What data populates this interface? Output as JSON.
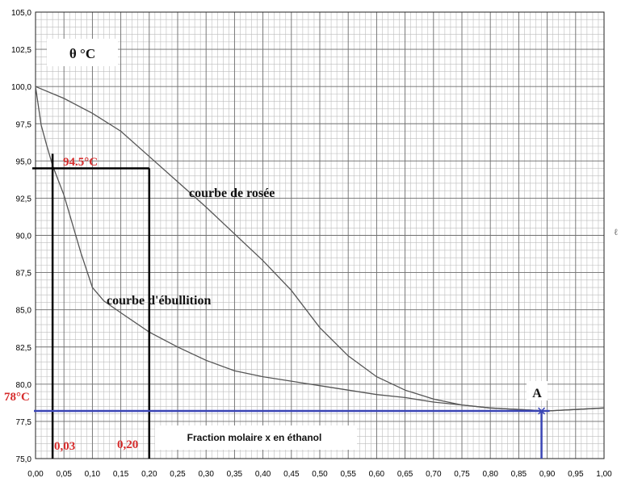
{
  "chart_data": {
    "type": "line",
    "title": "θ °C",
    "xlabel": "Fraction molaire x en éthanol",
    "ylabel": "",
    "xlim": [
      0,
      1
    ],
    "ylim": [
      75,
      105
    ],
    "x_ticks": [
      "0,00",
      "0,05",
      "0,10",
      "0,15",
      "0,20",
      "0,25",
      "0,30",
      "0,35",
      "0,40",
      "0,45",
      "0,50",
      "0,55",
      "0,60",
      "0,65",
      "0,70",
      "0,75",
      "0,80",
      "0,85",
      "0,90",
      "0,95",
      "1,00"
    ],
    "y_ticks": [
      "75,0",
      "77,5",
      "80,0",
      "82,5",
      "85,0",
      "87,5",
      "90,0",
      "92,5",
      "95,0",
      "97,5",
      "100,0",
      "102,5",
      "105,0"
    ],
    "grid": true,
    "series": [
      {
        "name": "courbe de rosée",
        "color": "#555555",
        "points": [
          [
            0,
            100
          ],
          [
            0.05,
            99.2
          ],
          [
            0.1,
            98.2
          ],
          [
            0.15,
            97
          ],
          [
            0.2,
            95.3
          ],
          [
            0.25,
            93.6
          ],
          [
            0.3,
            91.9
          ],
          [
            0.35,
            90.1
          ],
          [
            0.4,
            88.3
          ],
          [
            0.45,
            86.3
          ],
          [
            0.5,
            83.8
          ],
          [
            0.55,
            81.9
          ],
          [
            0.6,
            80.5
          ],
          [
            0.65,
            79.6
          ],
          [
            0.7,
            79
          ],
          [
            0.75,
            78.6
          ],
          [
            0.8,
            78.4
          ],
          [
            0.85,
            78.3
          ],
          [
            0.9,
            78.2
          ],
          [
            0.95,
            78.3
          ],
          [
            1,
            78.4
          ]
        ]
      },
      {
        "name": "courbe d'ébullition",
        "color": "#555555",
        "points": [
          [
            0,
            100
          ],
          [
            0.01,
            97.4
          ],
          [
            0.02,
            96
          ],
          [
            0.03,
            94.7
          ],
          [
            0.05,
            92.7
          ],
          [
            0.08,
            88.8
          ],
          [
            0.1,
            86.5
          ],
          [
            0.12,
            85.6
          ],
          [
            0.15,
            84.8
          ],
          [
            0.2,
            83.5
          ],
          [
            0.25,
            82.5
          ],
          [
            0.3,
            81.6
          ],
          [
            0.35,
            80.9
          ],
          [
            0.4,
            80.5
          ],
          [
            0.45,
            80.2
          ],
          [
            0.5,
            79.9
          ],
          [
            0.55,
            79.6
          ],
          [
            0.6,
            79.3
          ],
          [
            0.65,
            79.1
          ],
          [
            0.7,
            78.8
          ],
          [
            0.75,
            78.6
          ],
          [
            0.8,
            78.4
          ],
          [
            0.85,
            78.3
          ],
          [
            0.9,
            78.2
          ],
          [
            0.95,
            78.3
          ],
          [
            1,
            78.4
          ]
        ]
      }
    ],
    "constructions": {
      "black_vertical_x": [
        0.03,
        0.2
      ],
      "black_horizontal_y": 94.5,
      "blue_horizontal_y": 78.2,
      "blue_vertical_x": 0.89
    },
    "annotations": {
      "temp_a": "94.5°C",
      "temp_b": "78°C",
      "x_a": "0,03",
      "x_b": "0,20",
      "point_a": "A",
      "curve_rosee": "courbe de rosée",
      "curve_ebullition": "courbe d'ébullition",
      "stray_mark": "ℓ"
    }
  }
}
